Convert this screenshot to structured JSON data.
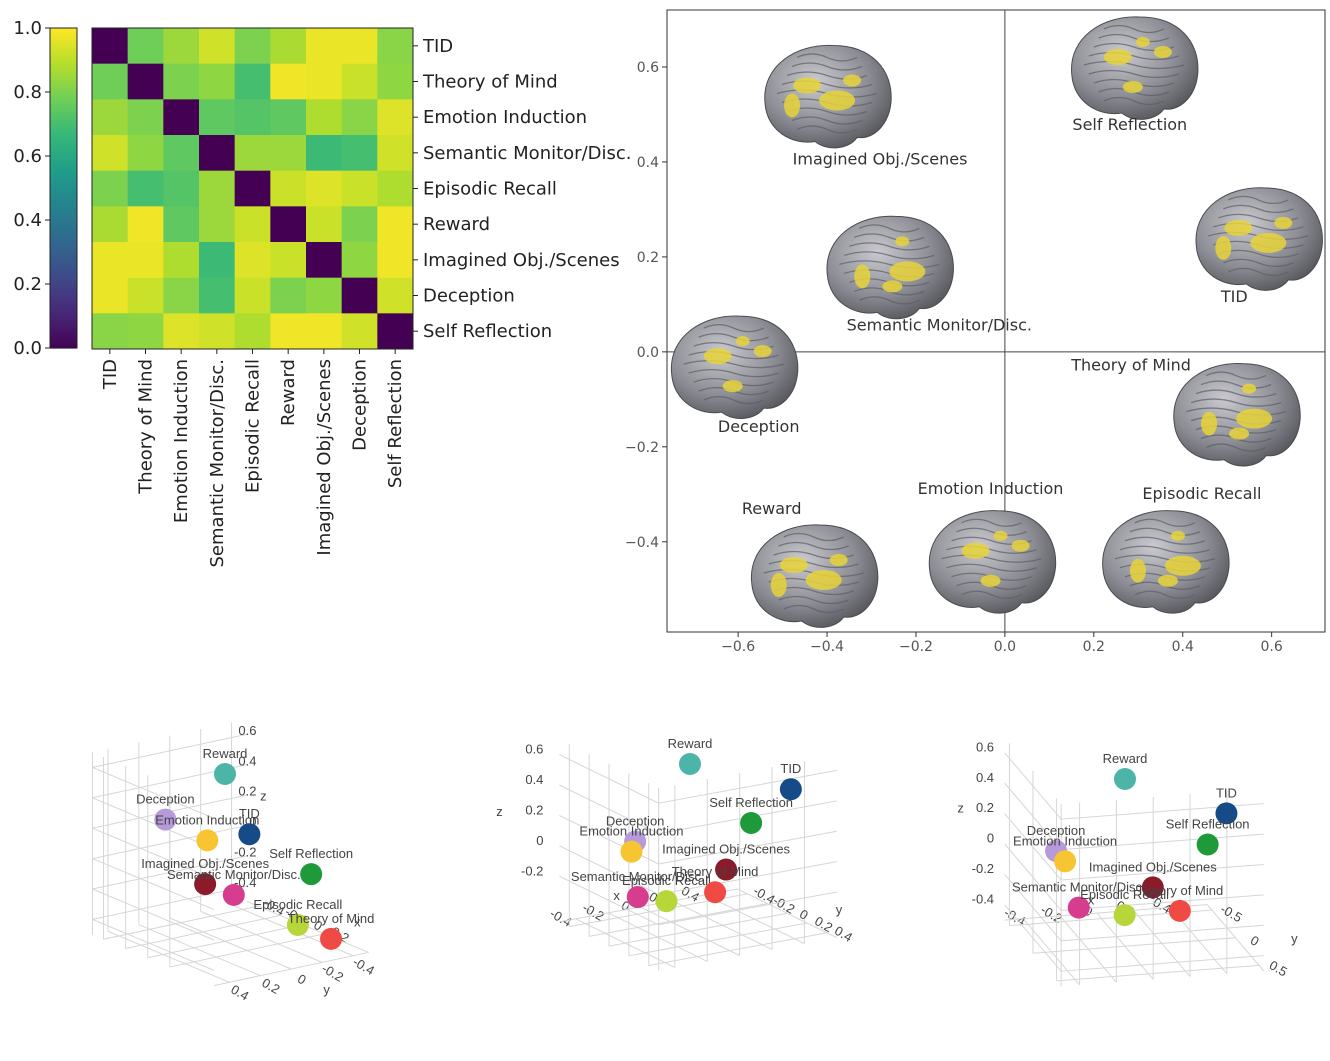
{
  "chart_data": [
    {
      "type": "heatmap",
      "categories": [
        "TID",
        "Theory of Mind",
        "Emotion Induction",
        "Semantic Monitor/Disc.",
        "Episodic Recall",
        "Reward",
        "Imagined Obj./Scenes",
        "Deception",
        "Self Reflection"
      ],
      "values": [
        [
          0,
          0.78,
          0.85,
          0.93,
          0.8,
          0.87,
          0.97,
          0.97,
          0.82
        ],
        [
          0.78,
          0,
          0.8,
          0.83,
          0.7,
          0.98,
          0.97,
          0.92,
          0.83
        ],
        [
          0.85,
          0.8,
          0,
          0.75,
          0.73,
          0.75,
          0.88,
          0.82,
          0.95
        ],
        [
          0.93,
          0.83,
          0.75,
          0,
          0.85,
          0.85,
          0.68,
          0.7,
          0.93
        ],
        [
          0.8,
          0.7,
          0.73,
          0.85,
          0,
          0.92,
          0.95,
          0.92,
          0.88
        ],
        [
          0.87,
          0.98,
          0.75,
          0.85,
          0.92,
          0,
          0.92,
          0.8,
          0.98
        ],
        [
          0.97,
          0.97,
          0.88,
          0.68,
          0.95,
          0.92,
          0,
          0.83,
          0.98
        ],
        [
          0.97,
          0.92,
          0.82,
          0.7,
          0.92,
          0.8,
          0.83,
          0,
          0.93
        ],
        [
          0.82,
          0.83,
          0.95,
          0.93,
          0.88,
          0.98,
          0.98,
          0.93,
          0
        ]
      ],
      "colormap": "viridis",
      "colorbar_lim": [
        0,
        1
      ],
      "colorbar_ticks": [
        {
          "value": 0,
          "label": "0.0"
        },
        0.2,
        0.4,
        0.6,
        0.8,
        {
          "value": 1,
          "label": "1.0"
        }
      ]
    },
    {
      "type": "scatter",
      "labels": [
        "Imagined Obj./Scenes",
        "Self Reflection",
        "Semantic Monitor/Disc.",
        "TID",
        "Deception",
        "Theory of Mind",
        "Reward",
        "Emotion Induction",
        "Episodic Recall"
      ],
      "x": [
        -0.4,
        0.29,
        -0.26,
        0.57,
        -0.61,
        0.52,
        -0.43,
        -0.03,
        0.36
      ],
      "y": [
        0.54,
        0.6,
        0.18,
        0.24,
        -0.03,
        -0.13,
        -0.47,
        -0.44,
        -0.44
      ],
      "xlim": [
        -0.76,
        0.72
      ],
      "ylim": [
        -0.59,
        0.72
      ],
      "xticks": [
        {
          "value": -0.6,
          "label": "−0.6"
        },
        {
          "value": -0.4,
          "label": "−0.4"
        },
        {
          "value": -0.2,
          "label": "−0.2"
        },
        {
          "value": 0,
          "label": "0.0"
        },
        0.2,
        0.4,
        0.6
      ],
      "yticks": [
        {
          "value": -0.4,
          "label": "−0.4"
        },
        {
          "value": -0.2,
          "label": "−0.2"
        },
        {
          "value": 0,
          "label": "0.0"
        },
        0.2,
        0.4,
        0.6
      ]
    },
    {
      "type": "scatter3d",
      "xlabel": "x",
      "ylabel": "y",
      "zlabel": "z",
      "xlim": [
        -0.5,
        0.6
      ],
      "ylim": [
        -0.5,
        0.5
      ],
      "zlim": [
        -0.5,
        0.7
      ],
      "xticks": [
        -0.4,
        -0.2,
        0,
        0.2
      ],
      "yticks": [
        -0.4,
        -0.2,
        0,
        0.2,
        0.4
      ],
      "zticks": [
        -0.4,
        -0.2,
        0,
        0.2,
        0.4,
        0.6
      ],
      "points": [
        {
          "name": "Reward",
          "color": "#4cb5a8",
          "x": 0,
          "y": 0,
          "z": 0.6
        },
        {
          "name": "TID",
          "color": "#154b87",
          "x": 0.5,
          "y": 0.2,
          "z": 0.4
        },
        {
          "name": "Deception",
          "color": "#b79ad9",
          "x": -0.4,
          "y": 0.1,
          "z": 0.2
        },
        {
          "name": "Emotion Induction",
          "color": "#f7c531",
          "x": -0.3,
          "y": -0.1,
          "z": 0.05
        },
        {
          "name": "Self Reflection",
          "color": "#1e9a3a",
          "x": 0.5,
          "y": -0.2,
          "z": 0.05
        },
        {
          "name": "Imagined Obj./Scenes",
          "color": "#8b1a2b",
          "x": 0.1,
          "y": 0.2,
          "z": -0.05
        },
        {
          "name": "Semantic Monitor/Disc.",
          "color": "#d63d8f",
          "x": -0.2,
          "y": -0.2,
          "z": -0.3
        },
        {
          "name": "Episodic Recall",
          "color": "#b6d63a",
          "x": 0.1,
          "y": -0.4,
          "z": -0.45
        },
        {
          "name": "Theory of Mind",
          "color": "#f04a45",
          "x": 0.4,
          "y": -0.4,
          "z": -0.45
        }
      ]
    },
    {
      "type": "scatter3d",
      "xlabel": "x",
      "ylabel": "y",
      "zlabel": "z",
      "xlim": [
        -0.5,
        0.6
      ],
      "ylim": [
        -0.5,
        0.5
      ],
      "zlim": [
        -0.5,
        0.7
      ],
      "xticks": [
        -0.4,
        -0.2,
        0,
        0.2,
        0.4
      ],
      "yticks": [
        -0.4,
        -0.2,
        0,
        0.2,
        0.4
      ],
      "zticks": [
        -0.2,
        0,
        0.2,
        0.4,
        0.6
      ],
      "points": [
        {
          "name": "Reward",
          "color": "#4cb5a8",
          "x": 0,
          "y": 0,
          "z": 0.6
        },
        {
          "name": "TID",
          "color": "#154b87",
          "x": 0.5,
          "y": 0.2,
          "z": 0.4
        },
        {
          "name": "Deception",
          "color": "#b79ad9",
          "x": -0.4,
          "y": 0.1,
          "z": 0.2
        },
        {
          "name": "Emotion Induction",
          "color": "#f7c531",
          "x": -0.3,
          "y": -0.1,
          "z": 0.05
        },
        {
          "name": "Self Reflection",
          "color": "#1e9a3a",
          "x": 0.5,
          "y": -0.2,
          "z": 0.05
        },
        {
          "name": "Imagined Obj./Scenes",
          "color": "#8b1a2b",
          "x": 0.1,
          "y": 0.2,
          "z": -0.05
        },
        {
          "name": "Semantic Monitor/Disc.",
          "color": "#d63d8f",
          "x": -0.2,
          "y": -0.2,
          "z": -0.3
        },
        {
          "name": "Episodic Recall",
          "color": "#b6d63a",
          "x": 0.1,
          "y": -0.4,
          "z": -0.45
        },
        {
          "name": "Theory of Mind",
          "color": "#f04a45",
          "x": 0.4,
          "y": -0.4,
          "z": -0.45
        }
      ]
    },
    {
      "type": "scatter3d",
      "xlabel": "x",
      "ylabel": "y",
      "zlabel": "z",
      "xlim": [
        -0.5,
        0.6
      ],
      "ylim": [
        -0.6,
        0.6
      ],
      "zlim": [
        -0.5,
        0.7
      ],
      "xticks": [
        -0.4,
        -0.2,
        0,
        0.2,
        0.4
      ],
      "yticks": [
        -0.5,
        0,
        0.5
      ],
      "zticks": [
        -0.4,
        -0.2,
        0,
        0.2,
        0.4,
        0.6
      ],
      "points": [
        {
          "name": "Reward",
          "color": "#4cb5a8",
          "x": 0,
          "y": 0,
          "z": 0.6
        },
        {
          "name": "TID",
          "color": "#154b87",
          "x": 0.5,
          "y": 0.2,
          "z": 0.4
        },
        {
          "name": "Deception",
          "color": "#b79ad9",
          "x": -0.4,
          "y": 0.1,
          "z": 0.2
        },
        {
          "name": "Emotion Induction",
          "color": "#f7c531",
          "x": -0.3,
          "y": -0.1,
          "z": 0.05
        },
        {
          "name": "Self Reflection",
          "color": "#1e9a3a",
          "x": 0.5,
          "y": -0.2,
          "z": 0.05
        },
        {
          "name": "Imagined Obj./Scenes",
          "color": "#8b1a2b",
          "x": 0.1,
          "y": 0.2,
          "z": -0.05
        },
        {
          "name": "Semantic Monitor/Disc.",
          "color": "#d63d8f",
          "x": -0.2,
          "y": -0.2,
          "z": -0.3
        },
        {
          "name": "Episodic Recall",
          "color": "#b6d63a",
          "x": 0.1,
          "y": -0.4,
          "z": -0.45
        },
        {
          "name": "Theory of Mind",
          "color": "#f04a45",
          "x": 0.4,
          "y": -0.4,
          "z": -0.45
        }
      ]
    }
  ]
}
